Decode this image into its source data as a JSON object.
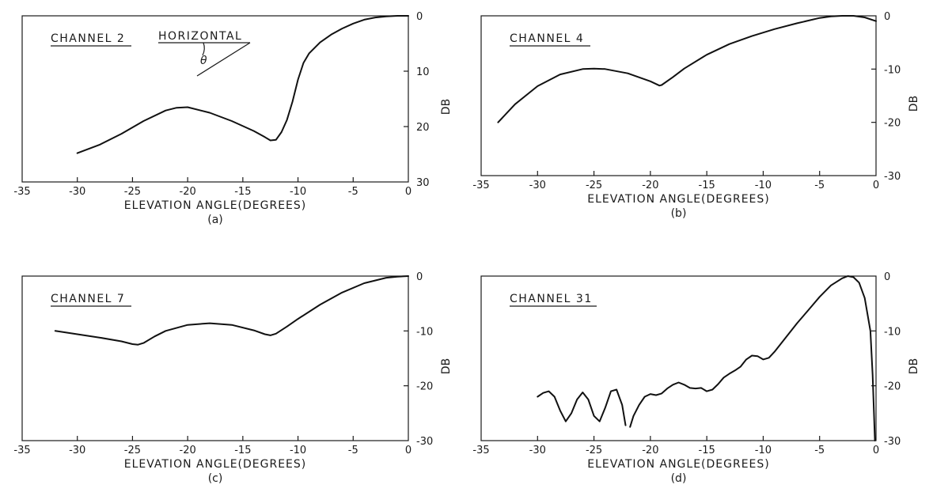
{
  "chart_data": [
    {
      "type": "line",
      "panel_label": "(a)",
      "annotation": "CHANNEL 2",
      "inset": {
        "label": "HORIZONTAL",
        "angle_symbol": "θ"
      },
      "xlabel": "ELEVATION ANGLE(DEGREES)",
      "ylabel": "DB",
      "xlim": [
        -35,
        0
      ],
      "ylim": [
        0,
        30
      ],
      "y_inverted": true,
      "x_ticks": [
        -35,
        -30,
        -25,
        -20,
        -15,
        -10,
        -5,
        0
      ],
      "y_ticks": [
        0,
        10,
        20,
        30
      ],
      "x_tick_labels": [
        "-35",
        "-30",
        "-25",
        "-20",
        "-15",
        "-10",
        "-5",
        "0"
      ],
      "y_tick_labels": [
        "0",
        "10",
        "20",
        "30"
      ],
      "grid": false,
      "series": [
        {
          "x": [
            -30,
            -28,
            -26,
            -24,
            -22,
            -21,
            -20,
            -18,
            -16,
            -14,
            -13,
            -12.5,
            -12,
            -11.5,
            -11,
            -10.5,
            -10,
            -9.5,
            -9,
            -8,
            -7,
            -6,
            -5,
            -4,
            -3,
            -2,
            -1,
            0
          ],
          "y": [
            24.8,
            23.3,
            21.3,
            19.0,
            17.1,
            16.6,
            16.5,
            17.5,
            19.0,
            20.8,
            21.9,
            22.5,
            22.4,
            21.0,
            18.8,
            15.5,
            11.5,
            8.5,
            6.8,
            4.8,
            3.4,
            2.3,
            1.4,
            0.7,
            0.3,
            0.1,
            0.0,
            0.0
          ]
        }
      ]
    },
    {
      "type": "line",
      "panel_label": "(b)",
      "annotation": "CHANNEL 4",
      "xlabel": "ELEVATION ANGLE(DEGREES)",
      "ylabel": "DB",
      "xlim": [
        -35,
        0
      ],
      "ylim": [
        0,
        30
      ],
      "y_inverted": true,
      "x_ticks": [
        -35,
        -30,
        -25,
        -20,
        -15,
        -10,
        -5,
        0
      ],
      "y_ticks": [
        0,
        10,
        20,
        30
      ],
      "x_tick_labels": [
        "-35",
        "-30",
        "-25",
        "-20",
        "-15",
        "-10",
        "-5",
        "0"
      ],
      "y_tick_labels": [
        "0",
        "-10",
        "-20",
        "-30"
      ],
      "grid": false,
      "series": [
        {
          "x": [
            -33.5,
            -32,
            -30,
            -28,
            -26,
            -25,
            -24,
            -22,
            -20,
            -19.2,
            -19,
            -18,
            -17,
            -15,
            -13,
            -11,
            -9,
            -7,
            -5,
            -4,
            -3,
            -2,
            -1,
            0
          ],
          "y": [
            20.0,
            16.6,
            13.2,
            11.0,
            10.0,
            9.9,
            10.0,
            10.8,
            12.3,
            13.1,
            13.0,
            11.5,
            9.9,
            7.3,
            5.3,
            3.8,
            2.5,
            1.4,
            0.4,
            0.1,
            0.0,
            0.0,
            0.3,
            1.0
          ]
        }
      ]
    },
    {
      "type": "line",
      "panel_label": "(c)",
      "annotation": "CHANNEL 7",
      "xlabel": "ELEVATION ANGLE(DEGREES)",
      "ylabel": "DB",
      "xlim": [
        -35,
        0
      ],
      "ylim": [
        0,
        30
      ],
      "y_inverted": true,
      "x_ticks": [
        -35,
        -30,
        -25,
        -20,
        -15,
        -10,
        -5,
        0
      ],
      "y_ticks": [
        0,
        10,
        20,
        30
      ],
      "x_tick_labels": [
        "-35",
        "-30",
        "-25",
        "-20",
        "-15",
        "-10",
        "-5",
        "0"
      ],
      "y_tick_labels": [
        "0",
        "-10",
        "-20",
        "-30"
      ],
      "grid": false,
      "series": [
        {
          "x": [
            -32,
            -30,
            -28,
            -26,
            -25,
            -24.5,
            -24,
            -23,
            -22,
            -20,
            -18,
            -16,
            -14,
            -13,
            -12.5,
            -12,
            -11,
            -10,
            -8,
            -6,
            -4,
            -2,
            -1,
            0
          ],
          "y": [
            10.0,
            10.6,
            11.2,
            11.9,
            12.4,
            12.5,
            12.2,
            11.0,
            10.0,
            8.9,
            8.6,
            8.9,
            9.9,
            10.6,
            10.8,
            10.5,
            9.2,
            7.8,
            5.2,
            3.0,
            1.3,
            0.3,
            0.1,
            0.0
          ]
        }
      ]
    },
    {
      "type": "line",
      "panel_label": "(d)",
      "annotation": "CHANNEL 31",
      "xlabel": "ELEVATION ANGLE(DEGREES)",
      "ylabel": "DB",
      "xlim": [
        -35,
        0
      ],
      "ylim": [
        0,
        30
      ],
      "y_inverted": true,
      "x_ticks": [
        -35,
        -30,
        -25,
        -20,
        -15,
        -10,
        -5,
        0
      ],
      "y_ticks": [
        0,
        10,
        20,
        30
      ],
      "x_tick_labels": [
        "-35",
        "-30",
        "-25",
        "-20",
        "-15",
        "-10",
        "-5",
        "0"
      ],
      "y_tick_labels": [
        "0",
        "-10",
        "-20",
        "-30"
      ],
      "grid": false,
      "series": [
        {
          "x": [
            -30,
            -29.5,
            -29,
            -28.5,
            -28,
            -27.5,
            -27,
            -26.5,
            -26,
            -25.5,
            -25,
            -24.5,
            -24,
            -23.5,
            -23,
            -22.5,
            -22.2
          ],
          "y": [
            22.0,
            21.3,
            21.0,
            22.0,
            24.5,
            26.5,
            25.0,
            22.5,
            21.2,
            22.5,
            25.5,
            26.5,
            24.0,
            21.0,
            20.7,
            23.5,
            27.2
          ]
        },
        {
          "x": [
            -21.8,
            -21.5,
            -21,
            -20.5,
            -20,
            -19.5,
            -19,
            -18.5,
            -18,
            -17.5,
            -17,
            -16.5,
            -16,
            -15.5,
            -15,
            -14.5,
            -14,
            -13.5,
            -13,
            -12.5,
            -12,
            -11.5,
            -11,
            -10.5,
            -10,
            -9.5,
            -9,
            -8,
            -7,
            -6,
            -5,
            -4,
            -3,
            -2.5,
            -2,
            -1.5,
            -1,
            -0.5,
            -0.3,
            -0.1
          ],
          "y": [
            27.5,
            25.5,
            23.5,
            22.0,
            21.5,
            21.7,
            21.4,
            20.5,
            19.8,
            19.4,
            19.8,
            20.4,
            20.5,
            20.4,
            21.0,
            20.7,
            19.7,
            18.5,
            17.8,
            17.2,
            16.5,
            15.2,
            14.5,
            14.6,
            15.2,
            14.9,
            13.8,
            11.2,
            8.6,
            6.2,
            3.8,
            1.7,
            0.4,
            0.0,
            0.2,
            1.2,
            4.0,
            10.0,
            18.0,
            30.0
          ]
        }
      ]
    }
  ]
}
